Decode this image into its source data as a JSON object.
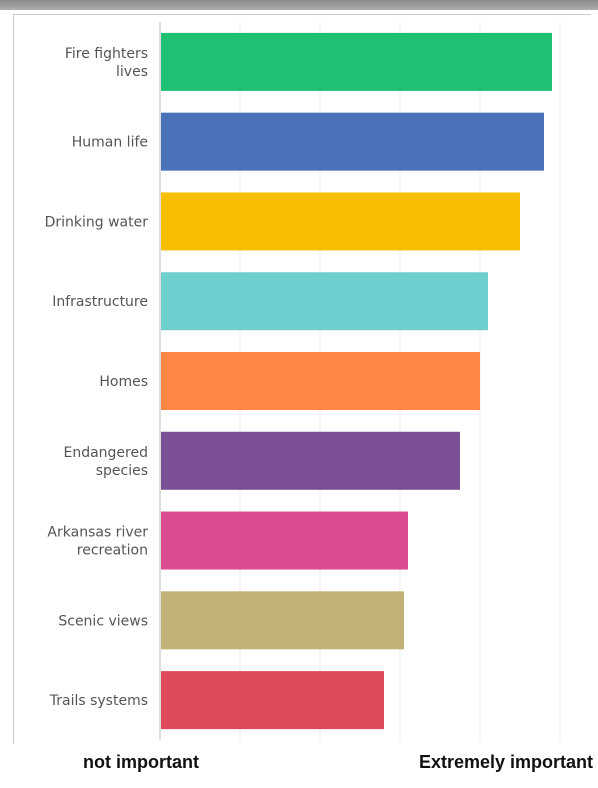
{
  "chart_data": {
    "type": "bar",
    "orientation": "horizontal",
    "categories": [
      [
        "Fire fighters",
        "lives"
      ],
      [
        "Human life"
      ],
      [
        "Drinking water"
      ],
      [
        "Infrastructure"
      ],
      [
        "Homes"
      ],
      [
        "Endangered",
        "species"
      ],
      [
        "Arkansas river",
        "recreation"
      ],
      [
        "Scenic views"
      ],
      [
        "Trails systems"
      ]
    ],
    "values": [
      4.9,
      4.8,
      4.5,
      4.1,
      4.0,
      3.75,
      3.1,
      3.05,
      2.8
    ],
    "colors": [
      "#1fbf74",
      "#4a72b8",
      "#f7be00",
      "#6fcfce",
      "#ff8745",
      "#7a4f93",
      "#dc4c92",
      "#c0b277",
      "#dd4a5a"
    ],
    "xlim": [
      0,
      5
    ],
    "grid": true,
    "x_axis_end_labels": {
      "left": "not important",
      "right": "Extremely important"
    }
  }
}
